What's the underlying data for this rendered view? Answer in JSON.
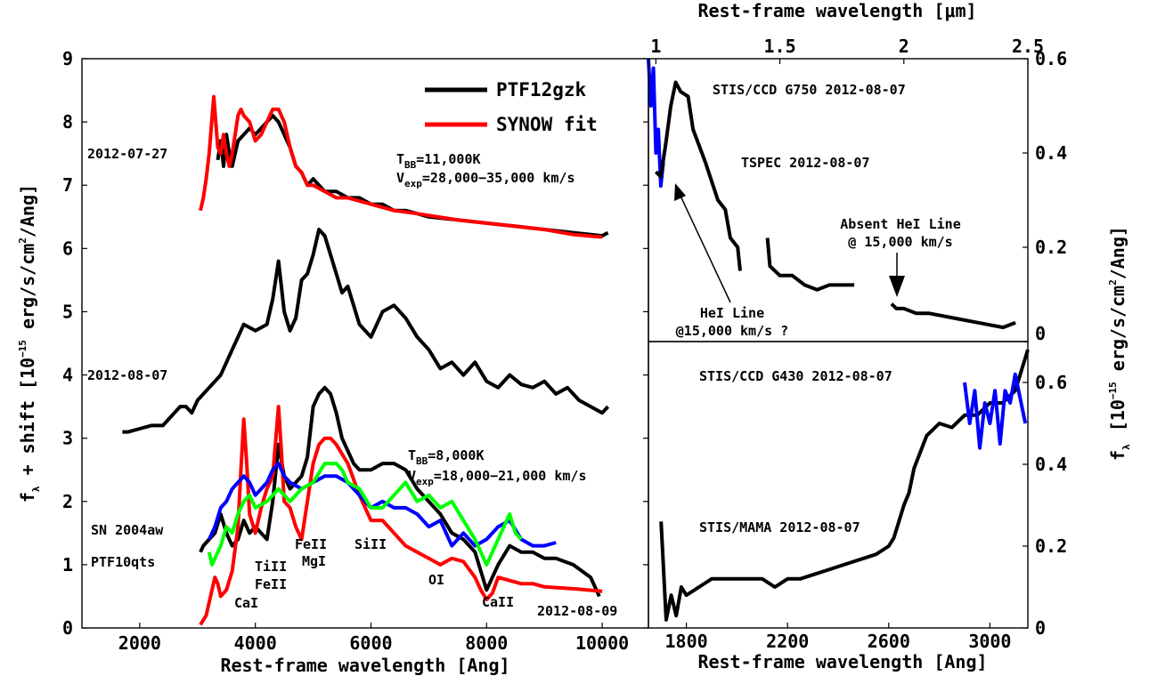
{
  "chart_data": [
    {
      "type": "line",
      "panel": "left",
      "xlabel": "Rest-frame wavelength [Ang]",
      "ylabel_parts": {
        "f": "f",
        "sub_lambda": "λ",
        "mid": " + shift  [10",
        "exp": "−15",
        "tail": " erg/s/cm",
        "exp2": "2",
        "end": "/Ang]"
      },
      "xlim": [
        1000,
        10800
      ],
      "ylim": [
        0,
        9
      ],
      "xticks": [
        "2000",
        "4000",
        "6000",
        "8000",
        "10000"
      ],
      "yticks": [
        "0",
        "1",
        "2",
        "3",
        "4",
        "5",
        "6",
        "7",
        "8",
        "9"
      ],
      "legend": {
        "position": "top-right",
        "entries": [
          "PTF12gzk",
          "SYNOW fit"
        ]
      },
      "colors": {
        "ptf12gzk": "#000000",
        "synow": "#ff0000",
        "sn2004aw": "#0000ff",
        "ptf10qts": "#00ff00"
      },
      "epochs": [
        "2012-07-27",
        "2012-08-07",
        "2012-08-09"
      ],
      "fit1": {
        "t_label": "T",
        "t_sub": "BB",
        "t_val": "=11,000K",
        "v_label": "V",
        "v_sub": "exp",
        "v_val": "=28,000−35,000 km/s"
      },
      "fit2": {
        "t_label": "T",
        "t_sub": "BB",
        "t_val": "=8,000K",
        "v_label": "V",
        "v_sub": "exp",
        "v_val": "=18,000−21,000 km/s"
      },
      "comparison_labels": [
        "SN 2004aw",
        "PTF10qts"
      ],
      "line_ids": {
        "cai": "CaI",
        "tiii": "TiII",
        "feii_a": "FeII",
        "feii_b": "FeII",
        "mgi": "MgI",
        "siii": "SiII",
        "oi": "OI",
        "caii": "CaII"
      },
      "series": [
        {
          "name": "PTF12gzk",
          "epoch": "2012-07-27",
          "color": "#000000",
          "x": [
            3350,
            3400,
            3450,
            3500,
            3550,
            3600,
            3700,
            3800,
            3900,
            4000,
            4100,
            4200,
            4300,
            4400,
            4500,
            4600,
            4700,
            4800,
            4900,
            5000,
            5200,
            5400,
            5600,
            5800,
            6000,
            6200,
            6400,
            6600,
            6800,
            7000,
            7500,
            8000,
            8500,
            9000,
            9500,
            10000,
            10100
          ],
          "y": [
            7.4,
            7.7,
            7.3,
            7.8,
            7.5,
            7.3,
            7.7,
            7.8,
            7.9,
            7.8,
            7.9,
            8.0,
            8.1,
            8.0,
            7.8,
            7.6,
            7.3,
            7.2,
            7.0,
            7.1,
            6.9,
            6.9,
            6.8,
            6.8,
            6.7,
            6.7,
            6.6,
            6.6,
            6.55,
            6.5,
            6.45,
            6.4,
            6.35,
            6.3,
            6.25,
            6.2,
            6.25
          ]
        },
        {
          "name": "SYNOW fit",
          "epoch": "2012-07-27",
          "color": "#ff0000",
          "x": [
            3050,
            3100,
            3150,
            3200,
            3280,
            3350,
            3400,
            3450,
            3500,
            3550,
            3600,
            3650,
            3700,
            3750,
            3800,
            3900,
            4000,
            4100,
            4200,
            4300,
            4400,
            4500,
            4600,
            4700,
            4800,
            4900,
            5000,
            5200,
            5400,
            5600,
            5800,
            6000,
            6400,
            6800,
            7500,
            8000,
            8500,
            9000,
            9500,
            10000
          ],
          "y": [
            6.6,
            6.8,
            7.1,
            7.5,
            8.4,
            7.6,
            7.5,
            7.8,
            7.5,
            7.3,
            7.5,
            7.8,
            8.1,
            8.2,
            8.1,
            8.0,
            7.7,
            7.8,
            8.0,
            8.2,
            8.2,
            8.0,
            7.6,
            7.3,
            7.2,
            7.0,
            7.0,
            6.9,
            6.8,
            6.8,
            6.75,
            6.7,
            6.6,
            6.55,
            6.45,
            6.4,
            6.35,
            6.3,
            6.22,
            6.18
          ]
        },
        {
          "name": "PTF12gzk",
          "epoch": "2012-08-07",
          "color": "#000000",
          "x": [
            1700,
            1800,
            2000,
            2200,
            2400,
            2600,
            2700,
            2800,
            2900,
            3000,
            3200,
            3400,
            3600,
            3800,
            4000,
            4200,
            4300,
            4400,
            4500,
            4600,
            4700,
            4800,
            4900,
            5000,
            5100,
            5200,
            5300,
            5400,
            5500,
            5600,
            5800,
            6000,
            6200,
            6400,
            6600,
            6800,
            7000,
            7200,
            7400,
            7600,
            7800,
            8000,
            8200,
            8400,
            8600,
            8800,
            9000,
            9200,
            9400,
            9600,
            9800,
            10000,
            10100
          ],
          "y": [
            3.1,
            3.1,
            3.15,
            3.2,
            3.2,
            3.4,
            3.5,
            3.5,
            3.4,
            3.6,
            3.8,
            4.0,
            4.4,
            4.8,
            4.7,
            4.8,
            5.2,
            5.8,
            5.0,
            4.7,
            4.9,
            5.5,
            5.6,
            5.9,
            6.3,
            6.2,
            5.9,
            5.6,
            5.3,
            5.4,
            4.8,
            4.6,
            5.0,
            5.1,
            4.9,
            4.6,
            4.4,
            4.1,
            4.2,
            4.0,
            4.2,
            3.9,
            3.8,
            4.0,
            3.85,
            3.8,
            3.9,
            3.7,
            3.8,
            3.6,
            3.5,
            3.4,
            3.5
          ]
        },
        {
          "name": "PTF12gzk",
          "epoch": "2012-08-09",
          "color": "#000000",
          "x": [
            3050,
            3100,
            3200,
            3300,
            3400,
            3500,
            3600,
            3700,
            3800,
            3900,
            4000,
            4100,
            4200,
            4300,
            4400,
            4500,
            4600,
            4700,
            4800,
            4900,
            5000,
            5100,
            5200,
            5300,
            5400,
            5500,
            5600,
            5700,
            5800,
            6000,
            6200,
            6400,
            6600,
            6800,
            7000,
            7200,
            7400,
            7600,
            7800,
            7900,
            8000,
            8100,
            8200,
            8400,
            8600,
            8800,
            9000,
            9200,
            9500,
            9800,
            9950
          ],
          "y": [
            1.2,
            1.3,
            1.4,
            1.5,
            1.8,
            1.5,
            1.3,
            1.4,
            1.7,
            1.5,
            1.6,
            1.5,
            1.4,
            2.0,
            2.9,
            2.4,
            2.2,
            2.3,
            2.4,
            2.7,
            3.5,
            3.7,
            3.8,
            3.7,
            3.4,
            3.0,
            2.8,
            2.6,
            2.5,
            2.5,
            2.6,
            2.6,
            2.5,
            2.2,
            2.0,
            1.8,
            1.5,
            1.4,
            1.2,
            0.9,
            0.6,
            0.8,
            1.0,
            1.3,
            1.2,
            1.2,
            1.1,
            1.1,
            1.0,
            0.8,
            0.5
          ]
        },
        {
          "name": "SYNOW fit",
          "epoch": "2012-08-09",
          "color": "#ff0000",
          "x": [
            3050,
            3150,
            3250,
            3300,
            3350,
            3400,
            3500,
            3600,
            3700,
            3750,
            3800,
            3850,
            3900,
            4000,
            4100,
            4200,
            4300,
            4400,
            4450,
            4500,
            4600,
            4700,
            4800,
            4900,
            5000,
            5100,
            5200,
            5300,
            5400,
            5600,
            5800,
            6000,
            6200,
            6400,
            6600,
            6800,
            7000,
            7200,
            7400,
            7600,
            7800,
            7900,
            8000,
            8100,
            8200,
            8400,
            8600,
            8800,
            9000,
            9500,
            10000
          ],
          "y": [
            0.05,
            0.2,
            0.6,
            0.8,
            0.7,
            0.5,
            0.6,
            0.9,
            1.6,
            2.5,
            3.3,
            2.6,
            1.8,
            1.5,
            1.9,
            2.2,
            2.4,
            3.5,
            2.8,
            2.0,
            1.9,
            1.6,
            1.4,
            2.0,
            2.6,
            2.9,
            3.0,
            3.0,
            2.9,
            2.6,
            2.1,
            1.7,
            1.7,
            1.5,
            1.3,
            1.2,
            1.1,
            1.0,
            1.1,
            1.05,
            0.8,
            0.6,
            0.45,
            0.55,
            0.8,
            0.75,
            0.7,
            0.7,
            0.65,
            0.62,
            0.58
          ]
        },
        {
          "name": "SN 2004aw",
          "color": "#0000ff",
          "x": [
            3200,
            3300,
            3400,
            3500,
            3600,
            3700,
            3800,
            3900,
            4000,
            4100,
            4200,
            4300,
            4400,
            4500,
            4600,
            4800,
            5000,
            5200,
            5400,
            5600,
            5800,
            6000,
            6200,
            6400,
            6600,
            6800,
            7000,
            7200,
            7400,
            7600,
            7800,
            8000,
            8200,
            8400,
            8600,
            8800,
            9000,
            9200
          ],
          "y": [
            1.4,
            1.6,
            1.9,
            2.0,
            2.2,
            2.3,
            2.4,
            2.3,
            2.1,
            2.2,
            2.3,
            2.5,
            2.6,
            2.4,
            2.3,
            2.2,
            2.3,
            2.4,
            2.4,
            2.3,
            2.1,
            1.9,
            2.0,
            1.9,
            1.9,
            1.8,
            1.6,
            1.7,
            1.3,
            1.5,
            1.3,
            1.4,
            1.6,
            1.7,
            1.4,
            1.3,
            1.3,
            1.35
          ]
        },
        {
          "name": "PTF10qts",
          "color": "#00ff00",
          "x": [
            3200,
            3250,
            3300,
            3400,
            3500,
            3600,
            3700,
            3800,
            3900,
            4000,
            4200,
            4400,
            4600,
            4800,
            5000,
            5200,
            5400,
            5500,
            5600,
            5800,
            6000,
            6200,
            6400,
            6600,
            6800,
            7000,
            7200,
            7400,
            7600,
            7800,
            8000,
            8200,
            8400,
            8500,
            8600
          ],
          "y": [
            1.2,
            1.0,
            1.1,
            1.3,
            1.6,
            1.5,
            1.8,
            2.0,
            2.1,
            1.9,
            2.0,
            2.2,
            2.0,
            2.2,
            2.3,
            2.6,
            2.6,
            2.5,
            2.3,
            2.2,
            1.9,
            1.9,
            2.1,
            2.3,
            2.0,
            2.1,
            1.9,
            2.0,
            1.7,
            1.4,
            1.0,
            1.4,
            1.8,
            1.5,
            1.4
          ]
        }
      ]
    },
    {
      "type": "line",
      "panel": "top-right",
      "x2label": "Rest-frame wavelength [μm]",
      "xlim": [
        0.97,
        2.5
      ],
      "ylim": [
        0,
        0.6
      ],
      "xticks": [
        "1",
        "1.5",
        "2",
        "2.5"
      ],
      "yticks": [
        "0",
        "0.2",
        "0.4",
        "0.6"
      ],
      "labels": {
        "stis": "STIS/CCD G750 2012-08-07",
        "tspec": "TSPEC 2012-08-07",
        "absent1": "Absent HeI Line",
        "absent2": "@ 15,000 km/s",
        "hei1": "HeI Line",
        "hei2": "@15,000 km/s ?"
      },
      "series": [
        {
          "name": "STIS/CCD G750",
          "color": "#0000ff",
          "x": [
            0.97,
            0.98,
            0.99,
            1.0,
            1.01,
            1.02,
            1.03
          ],
          "y": [
            0.6,
            0.5,
            0.58,
            0.4,
            0.45,
            0.33,
            0.38
          ]
        },
        {
          "name": "TSPEC",
          "color": "#000000",
          "x": [
            1.0,
            1.02,
            1.04,
            1.06,
            1.08,
            1.1,
            1.13,
            1.15,
            1.2,
            1.25,
            1.28,
            1.3,
            1.33,
            1.34
          ],
          "y": [
            0.36,
            0.35,
            0.42,
            0.5,
            0.55,
            0.53,
            0.52,
            0.45,
            0.38,
            0.3,
            0.28,
            0.22,
            0.2,
            0.15
          ]
        },
        {
          "name": "TSPEC",
          "color": "#000000",
          "x": [
            1.45,
            1.46,
            1.48,
            1.5,
            1.55,
            1.6,
            1.65,
            1.7,
            1.75,
            1.8
          ],
          "y": [
            0.22,
            0.16,
            0.15,
            0.14,
            0.14,
            0.12,
            0.11,
            0.12,
            0.12,
            0.12
          ]
        },
        {
          "name": "TSPEC",
          "color": "#000000",
          "x": [
            1.95,
            1.97,
            2.0,
            2.05,
            2.1,
            2.2,
            2.3,
            2.4,
            2.45
          ],
          "y": [
            0.08,
            0.07,
            0.07,
            0.06,
            0.06,
            0.05,
            0.04,
            0.03,
            0.04
          ]
        }
      ]
    },
    {
      "type": "line",
      "panel": "bottom-right",
      "xlabel": "Rest-frame wavelength [Ang]",
      "ylabel_parts": {
        "f": "f",
        "sub_lambda": "λ",
        "mid": "[10",
        "exp": "−15",
        "tail": " erg/s/cm",
        "exp2": "2",
        "end": "/Ang]"
      },
      "xlim": [
        1650,
        3150
      ],
      "ylim": [
        0,
        0.7
      ],
      "xticks": [
        "1800",
        "2200",
        "2600",
        "3000"
      ],
      "yticks": [
        "0",
        "0.2",
        "0.4",
        "0.6"
      ],
      "labels": {
        "stis430": "STIS/CCD G430 2012-08-07",
        "mama": "STIS/MAMA 2012-08-07"
      },
      "series": [
        {
          "name": "STIS/MAMA",
          "color": "#000000",
          "x": [
            1700,
            1720,
            1740,
            1760,
            1780,
            1800,
            1850,
            1900,
            1950,
            2000,
            2050,
            2100,
            2150,
            2200,
            2250,
            2300,
            2350,
            2400,
            2450,
            2500,
            2550,
            2600,
            2620,
            2640,
            2660,
            2680,
            2700,
            2750,
            2800,
            2850,
            2900,
            2950,
            3000,
            3050,
            3100,
            3150
          ],
          "y": [
            0.26,
            0.02,
            0.08,
            0.03,
            0.1,
            0.08,
            0.1,
            0.12,
            0.12,
            0.12,
            0.12,
            0.12,
            0.1,
            0.12,
            0.12,
            0.13,
            0.14,
            0.15,
            0.16,
            0.17,
            0.18,
            0.2,
            0.22,
            0.26,
            0.3,
            0.33,
            0.39,
            0.47,
            0.5,
            0.49,
            0.52,
            0.52,
            0.55,
            0.55,
            0.58,
            0.68
          ]
        },
        {
          "name": "STIS/CCD G430",
          "color": "#0000ff",
          "x": [
            2900,
            2920,
            2940,
            2960,
            2980,
            3000,
            3020,
            3040,
            3060,
            3080,
            3100,
            3120,
            3140
          ],
          "y": [
            0.6,
            0.5,
            0.58,
            0.44,
            0.55,
            0.5,
            0.58,
            0.45,
            0.58,
            0.55,
            0.62,
            0.56,
            0.5
          ]
        }
      ]
    }
  ]
}
